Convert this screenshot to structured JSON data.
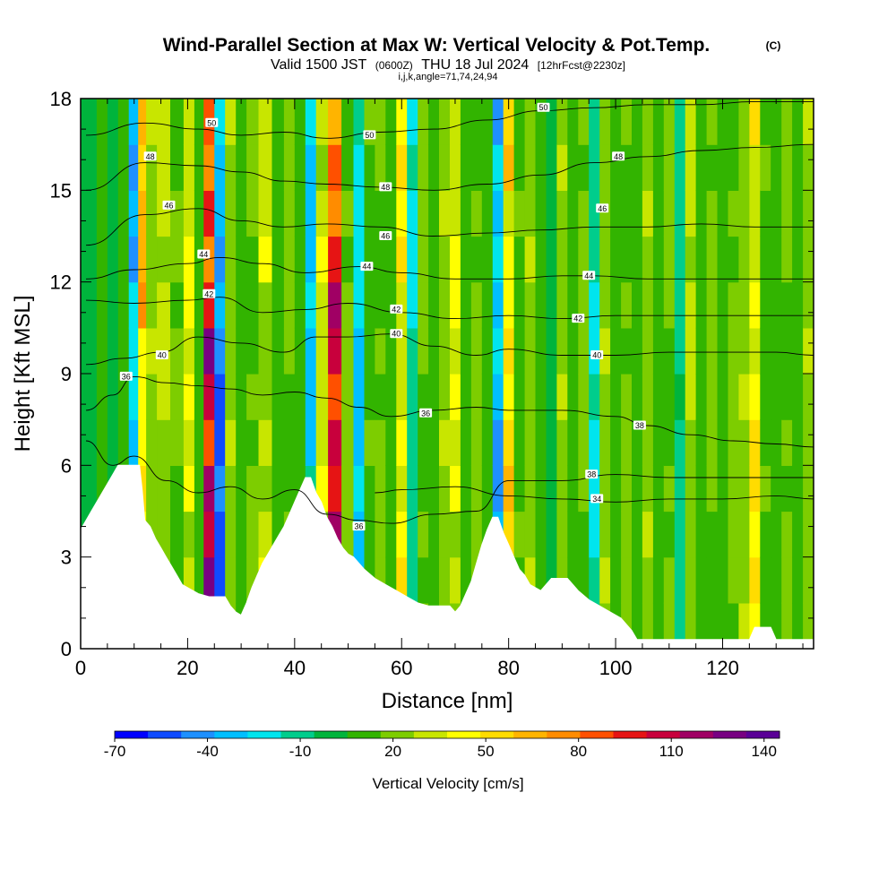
{
  "chart_data": {
    "type": "heatmap",
    "title": "Wind-Parallel Section at Max W: Vertical Velocity & Pot.Temp.",
    "copyright_mark": "(C)",
    "subtitle": {
      "valid_prefix": "Valid 1500 JST",
      "utc": "(0600Z)",
      "date": "THU 18 Jul 2024",
      "forecast": "[12hrFcst@2230z]"
    },
    "grid_info": "i,j,k,angle=71,74,24,94",
    "xlabel": "Distance [nm]",
    "ylabel": "Height [Kft MSL]",
    "xlim": [
      0,
      137
    ],
    "ylim": [
      0,
      18
    ],
    "x_ticks": [
      "0",
      "20",
      "40",
      "60",
      "80",
      "100",
      "120"
    ],
    "x_tick_values": [
      0,
      20,
      40,
      60,
      80,
      100,
      120
    ],
    "y_ticks": [
      "0",
      "3",
      "6",
      "9",
      "12",
      "15",
      "18"
    ],
    "y_tick_values": [
      0,
      3,
      6,
      9,
      12,
      15,
      18
    ],
    "colorbar": {
      "label": "Vertical Velocity [cm/s]",
      "min": -70,
      "max": 145,
      "step": 10,
      "tick_labels": [
        "-70",
        "-40",
        "-10",
        "20",
        "50",
        "80",
        "110",
        "140"
      ],
      "tick_values": [
        -70,
        -40,
        -10,
        20,
        50,
        80,
        110,
        140
      ],
      "colors": [
        "#0000ff",
        "#0f4bff",
        "#1e90ff",
        "#00bfff",
        "#00e5ee",
        "#00cd8c",
        "#00b43c",
        "#32b400",
        "#7dcd00",
        "#c8e600",
        "#ffff00",
        "#ffdc00",
        "#ffb400",
        "#ff8c00",
        "#ff5000",
        "#e61414",
        "#c8003c",
        "#a00064",
        "#780082",
        "#5a0096"
      ]
    },
    "vertical_velocity_columns": [
      {
        "x": 2,
        "w": -5
      },
      {
        "x": 4,
        "w": 5
      },
      {
        "x": 6,
        "w": -2
      },
      {
        "x": 8,
        "w": 8
      },
      {
        "x": 10,
        "w": -45
      },
      {
        "x": 11.5,
        "w": 60
      },
      {
        "x": 13,
        "w": 20
      },
      {
        "x": 15.5,
        "w": 25
      },
      {
        "x": 18,
        "w": 12
      },
      {
        "x": 20.5,
        "w": 35
      },
      {
        "x": 22,
        "w": 5
      },
      {
        "x": 24,
        "w": 110
      },
      {
        "x": 26,
        "w": -60
      },
      {
        "x": 28,
        "w": 20
      },
      {
        "x": 30,
        "w": 5
      },
      {
        "x": 32,
        "w": 15
      },
      {
        "x": 34.5,
        "w": 30
      },
      {
        "x": 37,
        "w": 5
      },
      {
        "x": 39,
        "w": 15
      },
      {
        "x": 41,
        "w": 2
      },
      {
        "x": 43,
        "w": -40
      },
      {
        "x": 45,
        "w": 30
      },
      {
        "x": 47.5,
        "w": 105
      },
      {
        "x": 50,
        "w": 15
      },
      {
        "x": 52,
        "w": -40
      },
      {
        "x": 54,
        "w": 10
      },
      {
        "x": 56,
        "w": 15
      },
      {
        "x": 58,
        "w": 5
      },
      {
        "x": 60,
        "w": 45
      },
      {
        "x": 62,
        "w": -25
      },
      {
        "x": 64,
        "w": 15
      },
      {
        "x": 66,
        "w": 5
      },
      {
        "x": 68,
        "w": 20
      },
      {
        "x": 70,
        "w": 35
      },
      {
        "x": 72,
        "w": 5
      },
      {
        "x": 74,
        "w": 15
      },
      {
        "x": 76,
        "w": 2
      },
      {
        "x": 78,
        "w": -50
      },
      {
        "x": 80,
        "w": 55
      },
      {
        "x": 82,
        "w": 10
      },
      {
        "x": 84,
        "w": 20
      },
      {
        "x": 86,
        "w": 5
      },
      {
        "x": 88,
        "w": -10
      },
      {
        "x": 90,
        "w": 20
      },
      {
        "x": 92,
        "w": 5
      },
      {
        "x": 94,
        "w": 15
      },
      {
        "x": 96,
        "w": -25
      },
      {
        "x": 98,
        "w": 20
      },
      {
        "x": 100,
        "w": 5
      },
      {
        "x": 102,
        "w": 15
      },
      {
        "x": 104,
        "w": 2
      },
      {
        "x": 106,
        "w": 20
      },
      {
        "x": 108,
        "w": 5
      },
      {
        "x": 110,
        "w": 15
      },
      {
        "x": 112,
        "w": -20
      },
      {
        "x": 114,
        "w": 25
      },
      {
        "x": 116,
        "w": 5
      },
      {
        "x": 118,
        "w": 15
      },
      {
        "x": 120,
        "w": 5
      },
      {
        "x": 122,
        "w": 15
      },
      {
        "x": 124,
        "w": 20
      },
      {
        "x": 126,
        "w": 45
      },
      {
        "x": 128,
        "w": 10
      },
      {
        "x": 130,
        "w": 5
      },
      {
        "x": 132,
        "w": 15
      },
      {
        "x": 134,
        "w": 5
      },
      {
        "x": 136,
        "w": 20
      }
    ],
    "terrain_profile": [
      [
        0,
        3.9
      ],
      [
        1,
        4.2
      ],
      [
        2,
        4.5
      ],
      [
        3,
        4.8
      ],
      [
        4,
        5.1
      ],
      [
        5,
        5.4
      ],
      [
        6,
        5.7
      ],
      [
        7,
        6.0
      ],
      [
        11,
        6.0
      ],
      [
        11.5,
        5.2
      ],
      [
        12,
        4.2
      ],
      [
        13,
        4.0
      ],
      [
        14,
        3.6
      ],
      [
        15,
        3.3
      ],
      [
        16,
        3.0
      ],
      [
        17,
        2.7
      ],
      [
        18,
        2.4
      ],
      [
        19,
        2.1
      ],
      [
        20,
        2.0
      ],
      [
        22,
        1.8
      ],
      [
        24,
        1.7
      ],
      [
        27,
        1.7
      ],
      [
        28,
        1.4
      ],
      [
        29,
        1.2
      ],
      [
        30,
        1.1
      ],
      [
        31,
        1.5
      ],
      [
        32,
        2.0
      ],
      [
        33,
        2.4
      ],
      [
        34,
        2.8
      ],
      [
        35,
        3.1
      ],
      [
        36,
        3.4
      ],
      [
        37,
        3.7
      ],
      [
        38,
        4.0
      ],
      [
        39,
        4.4
      ],
      [
        40,
        4.8
      ],
      [
        41,
        5.2
      ],
      [
        42,
        5.6
      ],
      [
        43,
        5.6
      ],
      [
        44,
        5.1
      ],
      [
        45,
        4.8
      ],
      [
        46,
        4.3
      ],
      [
        47,
        4.0
      ],
      [
        48,
        3.6
      ],
      [
        49,
        3.3
      ],
      [
        50,
        3.1
      ],
      [
        51,
        3.0
      ],
      [
        52,
        2.8
      ],
      [
        53,
        2.6
      ],
      [
        55,
        2.3
      ],
      [
        57,
        2.1
      ],
      [
        59,
        1.9
      ],
      [
        61,
        1.7
      ],
      [
        63,
        1.5
      ],
      [
        65,
        1.4
      ],
      [
        67,
        1.4
      ],
      [
        69,
        1.4
      ],
      [
        70,
        1.2
      ],
      [
        71,
        1.4
      ],
      [
        72,
        1.8
      ],
      [
        73,
        2.2
      ],
      [
        74,
        2.8
      ],
      [
        75,
        3.4
      ],
      [
        76,
        3.9
      ],
      [
        77,
        4.3
      ],
      [
        78,
        4.3
      ],
      [
        79,
        3.8
      ],
      [
        80,
        3.4
      ],
      [
        81,
        3.0
      ],
      [
        82,
        2.6
      ],
      [
        83,
        2.4
      ],
      [
        84,
        2.1
      ],
      [
        86,
        1.9
      ],
      [
        88,
        2.3
      ],
      [
        91,
        2.3
      ],
      [
        93,
        1.9
      ],
      [
        95,
        1.6
      ],
      [
        97,
        1.4
      ],
      [
        99,
        1.2
      ],
      [
        101,
        1.0
      ],
      [
        102,
        0.8
      ],
      [
        103,
        0.6
      ],
      [
        104,
        0.3
      ],
      [
        125,
        0.3
      ],
      [
        126,
        0.7
      ],
      [
        129,
        0.7
      ],
      [
        130,
        0.3
      ],
      [
        137,
        0.3
      ]
    ],
    "theta_isolines": [
      {
        "label": "34",
        "points": [
          [
            55,
            5.1
          ],
          [
            60,
            5.2
          ],
          [
            70,
            5.3
          ],
          [
            80,
            5.0
          ],
          [
            90,
            4.9
          ],
          [
            100,
            4.8
          ],
          [
            110,
            4.9
          ],
          [
            120,
            4.9
          ],
          [
            130,
            5.0
          ],
          [
            137,
            4.9
          ]
        ]
      },
      {
        "label": "36",
        "points": [
          [
            1,
            6.8
          ],
          [
            6,
            6.0
          ],
          [
            10,
            6.3
          ],
          [
            16,
            5.5
          ],
          [
            22,
            5.1
          ],
          [
            28,
            5.3
          ],
          [
            34,
            4.9
          ],
          [
            40,
            5.2
          ],
          [
            46,
            4.4
          ],
          [
            52,
            4.2
          ],
          [
            58,
            4.1
          ],
          [
            66,
            4.4
          ],
          [
            74,
            4.5
          ],
          [
            80,
            5.5
          ],
          [
            90,
            5.5
          ],
          [
            100,
            5.7
          ],
          [
            110,
            5.6
          ],
          [
            120,
            5.6
          ],
          [
            130,
            5.6
          ],
          [
            137,
            5.6
          ]
        ]
      },
      {
        "label": "38",
        "points": [
          [
            1,
            7.8
          ],
          [
            6,
            8.3
          ],
          [
            10,
            8.9
          ],
          [
            16,
            8.7
          ],
          [
            22,
            8.6
          ],
          [
            28,
            8.5
          ],
          [
            34,
            8.3
          ],
          [
            40,
            8.4
          ],
          [
            46,
            8.2
          ],
          [
            52,
            7.9
          ],
          [
            58,
            7.6
          ],
          [
            66,
            7.8
          ],
          [
            74,
            7.9
          ],
          [
            80,
            7.8
          ],
          [
            90,
            7.8
          ],
          [
            100,
            7.6
          ],
          [
            106,
            7.3
          ],
          [
            114,
            7.0
          ],
          [
            122,
            6.8
          ],
          [
            130,
            6.7
          ],
          [
            137,
            6.6
          ]
        ]
      },
      {
        "label": "40",
        "points": [
          [
            1,
            9.3
          ],
          [
            8,
            9.5
          ],
          [
            15,
            9.7
          ],
          [
            22,
            10.2
          ],
          [
            30,
            10.0
          ],
          [
            38,
            9.7
          ],
          [
            44,
            10.2
          ],
          [
            50,
            10.2
          ],
          [
            58,
            10.3
          ],
          [
            66,
            9.9
          ],
          [
            74,
            9.6
          ],
          [
            80,
            9.8
          ],
          [
            90,
            9.6
          ],
          [
            100,
            9.6
          ],
          [
            110,
            9.7
          ],
          [
            120,
            9.7
          ],
          [
            130,
            9.7
          ],
          [
            137,
            9.6
          ]
        ]
      },
      {
        "label": "42",
        "points": [
          [
            1,
            11.4
          ],
          [
            10,
            11.3
          ],
          [
            20,
            11.4
          ],
          [
            26,
            11.5
          ],
          [
            34,
            11.0
          ],
          [
            42,
            11.1
          ],
          [
            50,
            11.3
          ],
          [
            60,
            11.0
          ],
          [
            70,
            10.8
          ],
          [
            80,
            10.9
          ],
          [
            90,
            10.8
          ],
          [
            100,
            10.9
          ],
          [
            110,
            10.9
          ],
          [
            120,
            10.9
          ],
          [
            130,
            10.9
          ],
          [
            137,
            10.9
          ]
        ]
      },
      {
        "label": "44",
        "points": [
          [
            1,
            12.1
          ],
          [
            10,
            12.4
          ],
          [
            20,
            12.6
          ],
          [
            26,
            12.8
          ],
          [
            34,
            12.6
          ],
          [
            42,
            12.3
          ],
          [
            52,
            12.5
          ],
          [
            60,
            12.3
          ],
          [
            70,
            12.1
          ],
          [
            80,
            12.1
          ],
          [
            90,
            12.2
          ],
          [
            96,
            12.2
          ],
          [
            106,
            12.1
          ],
          [
            116,
            12.1
          ],
          [
            126,
            12.1
          ],
          [
            137,
            12.1
          ]
        ]
      },
      {
        "label": "46",
        "points": [
          [
            1,
            13.2
          ],
          [
            12,
            14.2
          ],
          [
            22,
            14.4
          ],
          [
            30,
            14.0
          ],
          [
            38,
            13.8
          ],
          [
            46,
            13.9
          ],
          [
            56,
            13.8
          ],
          [
            66,
            13.5
          ],
          [
            76,
            13.6
          ],
          [
            86,
            13.7
          ],
          [
            96,
            13.8
          ],
          [
            106,
            13.8
          ],
          [
            116,
            13.9
          ],
          [
            126,
            13.8
          ],
          [
            137,
            13.8
          ]
        ]
      },
      {
        "label": "48",
        "points": [
          [
            1,
            15.0
          ],
          [
            12,
            15.9
          ],
          [
            22,
            15.8
          ],
          [
            30,
            15.6
          ],
          [
            38,
            15.3
          ],
          [
            46,
            15.2
          ],
          [
            56,
            15.1
          ],
          [
            66,
            15.0
          ],
          [
            76,
            15.2
          ],
          [
            86,
            15.5
          ],
          [
            96,
            15.9
          ],
          [
            106,
            16.1
          ],
          [
            116,
            16.3
          ],
          [
            126,
            16.4
          ],
          [
            137,
            16.5
          ]
        ]
      },
      {
        "label": "50",
        "points": [
          [
            1,
            16.8
          ],
          [
            12,
            17.2
          ],
          [
            22,
            17.0
          ],
          [
            30,
            16.8
          ],
          [
            38,
            16.9
          ],
          [
            46,
            16.7
          ],
          [
            56,
            16.9
          ],
          [
            66,
            17.0
          ],
          [
            76,
            17.3
          ],
          [
            86,
            17.6
          ],
          [
            96,
            17.7
          ],
          [
            106,
            17.8
          ],
          [
            116,
            17.8
          ],
          [
            126,
            17.9
          ],
          [
            137,
            17.9
          ]
        ]
      }
    ],
    "contour_labels": [
      {
        "label": "36",
        "x": 8.5,
        "y": 8.9
      },
      {
        "label": "40",
        "x": 15.2,
        "y": 9.6
      },
      {
        "label": "42",
        "x": 24,
        "y": 11.6
      },
      {
        "label": "44",
        "x": 23,
        "y": 12.9
      },
      {
        "label": "46",
        "x": 16.5,
        "y": 14.5
      },
      {
        "label": "48",
        "x": 13,
        "y": 16.1
      },
      {
        "label": "50",
        "x": 24.5,
        "y": 17.2
      },
      {
        "label": "50",
        "x": 54,
        "y": 16.8
      },
      {
        "label": "48",
        "x": 57,
        "y": 15.1
      },
      {
        "label": "46",
        "x": 57,
        "y": 13.5
      },
      {
        "label": "44",
        "x": 53.5,
        "y": 12.5
      },
      {
        "label": "42",
        "x": 59,
        "y": 11.1
      },
      {
        "label": "40",
        "x": 59,
        "y": 10.3
      },
      {
        "label": "36",
        "x": 64.5,
        "y": 7.7
      },
      {
        "label": "36",
        "x": 52,
        "y": 4.0
      },
      {
        "label": "50",
        "x": 86.5,
        "y": 17.7
      },
      {
        "label": "48",
        "x": 100.5,
        "y": 16.1
      },
      {
        "label": "46",
        "x": 97.5,
        "y": 14.4
      },
      {
        "label": "44",
        "x": 95,
        "y": 12.2
      },
      {
        "label": "42",
        "x": 93,
        "y": 10.8
      },
      {
        "label": "40",
        "x": 96.5,
        "y": 9.6
      },
      {
        "label": "38",
        "x": 104.5,
        "y": 7.3
      },
      {
        "label": "38",
        "x": 95.5,
        "y": 5.7
      },
      {
        "label": "34",
        "x": 96.5,
        "y": 4.9
      }
    ]
  }
}
